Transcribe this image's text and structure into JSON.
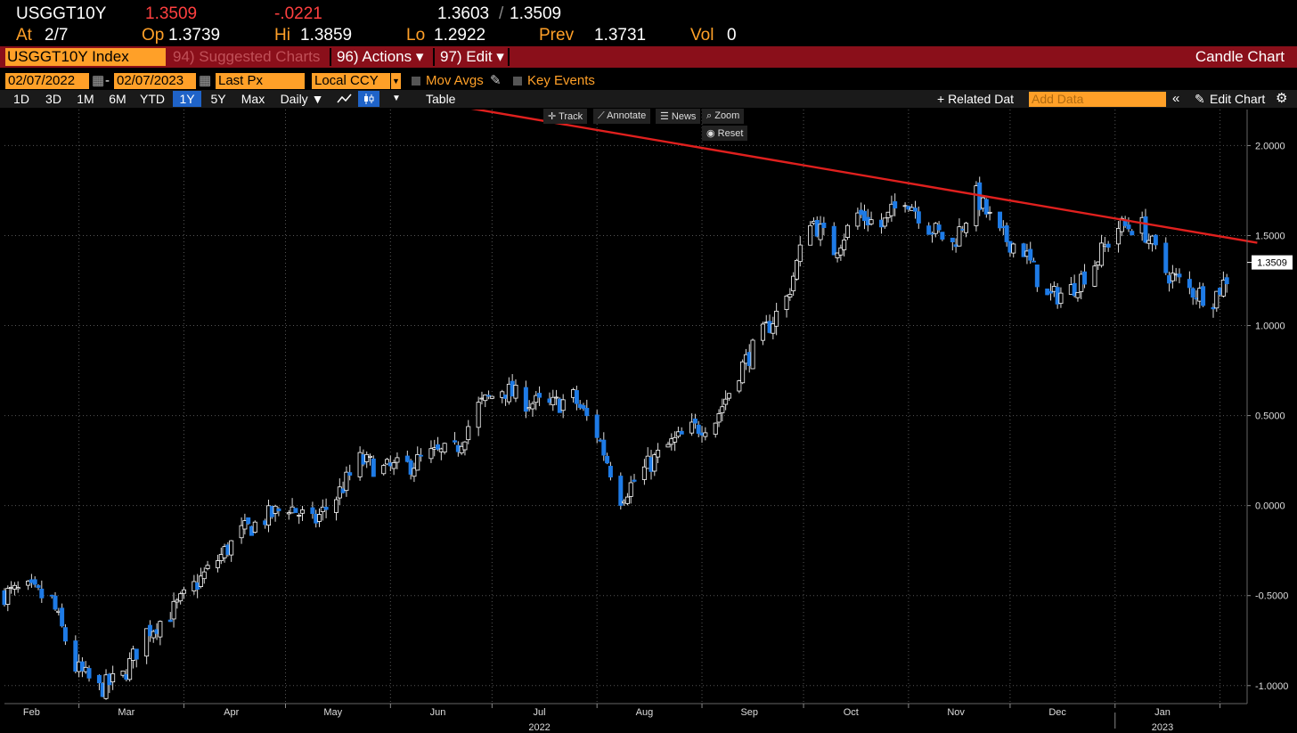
{
  "quote": {
    "ticker": "USGGT10Y",
    "last": "1.3509",
    "change": "-.0221",
    "bid_ask": "1.3603",
    "bid_ask_sep": "/",
    "bid_ask_2": "1.3509",
    "at_label": "At",
    "at_value": "2/7",
    "op_label": "Op",
    "op_value": "1.3739",
    "hi_label": "Hi",
    "hi_value": "1.3859",
    "lo_label": "Lo",
    "lo_value": "1.2922",
    "prev_label": "Prev",
    "prev_value": "1.3731",
    "vol_label": "Vol",
    "vol_value": "0"
  },
  "titlebar": {
    "security": "USGGT10Y Index",
    "suggested": "94) Suggested Charts",
    "actions": "96) Actions ▾",
    "edit": "97) Edit ▾",
    "chart_type": "Candle Chart"
  },
  "controls": {
    "start_date": "02/07/2022",
    "dash": "-",
    "end_date": "02/07/2023",
    "field": "Last Px",
    "currency": "Local CCY",
    "mov_avgs": "Mov Avgs",
    "key_events": "Key Events"
  },
  "ranges": {
    "buttons": [
      "1D",
      "3D",
      "1M",
      "6M",
      "YTD",
      "1Y",
      "5Y",
      "Max"
    ],
    "selected": "1Y",
    "period": "Daily ▼",
    "table": "Table",
    "related": "+ Related Dat",
    "add_data_placeholder": "Add Data",
    "edit_chart": "Edit Chart"
  },
  "toolbar": {
    "track": "Track",
    "annotate": "Annotate",
    "news": "News",
    "zoom": "Zoom",
    "reset": "Reset"
  },
  "colors": {
    "up": "#ffffff",
    "down": "#1e7be6",
    "trend": "#e0201e",
    "accent": "#ffa028",
    "titlebar": "#8a0f1a"
  },
  "chart_data": {
    "type": "candlestick",
    "ylim": [
      -1.1,
      2.2
    ],
    "y_ticks": [
      "2.0000",
      "1.5000",
      "1.0000",
      "0.5000",
      "0.0000",
      "-0.5000",
      "-1.0000"
    ],
    "y_tick_values": [
      2.0,
      1.5,
      1.0,
      0.5,
      0.0,
      -0.5,
      -1.0
    ],
    "x_ticks": [
      "Feb",
      "Mar",
      "Apr",
      "May",
      "Jun",
      "Jul",
      "Aug",
      "Sep",
      "Oct",
      "Nov",
      "Dec",
      "Jan"
    ],
    "x_tick_dates": [
      "2022-02-15",
      "2022-03-15",
      "2022-04-15",
      "2022-05-15",
      "2022-06-15",
      "2022-07-15",
      "2022-08-15",
      "2022-09-15",
      "2022-10-15",
      "2022-11-15",
      "2022-12-15",
      "2023-01-15"
    ],
    "year_labels": [
      "2022",
      "2023"
    ],
    "year_label_dates": [
      "2022-07-15",
      "2023-01-15"
    ],
    "x_range": [
      "2022-02-07",
      "2023-02-09"
    ],
    "last_value_label": "1.3509",
    "last_value": 1.3509,
    "grid": true,
    "trendline": {
      "start": {
        "date": "2022-06-08",
        "value": 2.26
      },
      "end": {
        "date": "2023-02-12",
        "value": 1.46
      }
    },
    "close_path": [
      [
        "2022-02-07",
        -0.49
      ],
      [
        "2022-02-14",
        -0.47
      ],
      [
        "2022-02-21",
        -0.53
      ],
      [
        "2022-02-28",
        -0.9
      ],
      [
        "2022-03-07",
        -1.02
      ],
      [
        "2022-03-14",
        -0.95
      ],
      [
        "2022-03-21",
        -0.7
      ],
      [
        "2022-03-28",
        -0.6
      ],
      [
        "2022-04-04",
        -0.45
      ],
      [
        "2022-04-11",
        -0.3
      ],
      [
        "2022-04-18",
        -0.15
      ],
      [
        "2022-04-25",
        -0.07
      ],
      [
        "2022-05-02",
        0.0
      ],
      [
        "2022-05-09",
        -0.1
      ],
      [
        "2022-05-16",
        0.05
      ],
      [
        "2022-05-23",
        0.25
      ],
      [
        "2022-05-30",
        0.2
      ],
      [
        "2022-06-06",
        0.22
      ],
      [
        "2022-06-13",
        0.28
      ],
      [
        "2022-06-20",
        0.3
      ],
      [
        "2022-06-27",
        0.55
      ],
      [
        "2022-07-04",
        0.65
      ],
      [
        "2022-07-11",
        0.58
      ],
      [
        "2022-07-18",
        0.55
      ],
      [
        "2022-07-25",
        0.6
      ],
      [
        "2022-08-01",
        0.4
      ],
      [
        "2022-08-08",
        0.05
      ],
      [
        "2022-08-15",
        0.2
      ],
      [
        "2022-08-22",
        0.33
      ],
      [
        "2022-08-29",
        0.42
      ],
      [
        "2022-09-05",
        0.48
      ],
      [
        "2022-09-12",
        0.75
      ],
      [
        "2022-09-19",
        0.95
      ],
      [
        "2022-09-26",
        1.15
      ],
      [
        "2022-10-03",
        1.6
      ],
      [
        "2022-10-10",
        1.42
      ],
      [
        "2022-10-17",
        1.62
      ],
      [
        "2022-10-24",
        1.55
      ],
      [
        "2022-10-31",
        1.72
      ],
      [
        "2022-11-07",
        1.55
      ],
      [
        "2022-11-14",
        1.45
      ],
      [
        "2022-11-21",
        1.72
      ],
      [
        "2022-11-28",
        1.5
      ],
      [
        "2022-12-05",
        1.42
      ],
      [
        "2022-12-12",
        1.15
      ],
      [
        "2022-12-19",
        1.2
      ],
      [
        "2022-12-26",
        1.35
      ],
      [
        "2023-01-02",
        1.55
      ],
      [
        "2023-01-09",
        1.55
      ],
      [
        "2023-01-16",
        1.3
      ],
      [
        "2023-01-23",
        1.2
      ],
      [
        "2023-01-30",
        1.15
      ],
      [
        "2023-02-06",
        1.35
      ]
    ]
  }
}
